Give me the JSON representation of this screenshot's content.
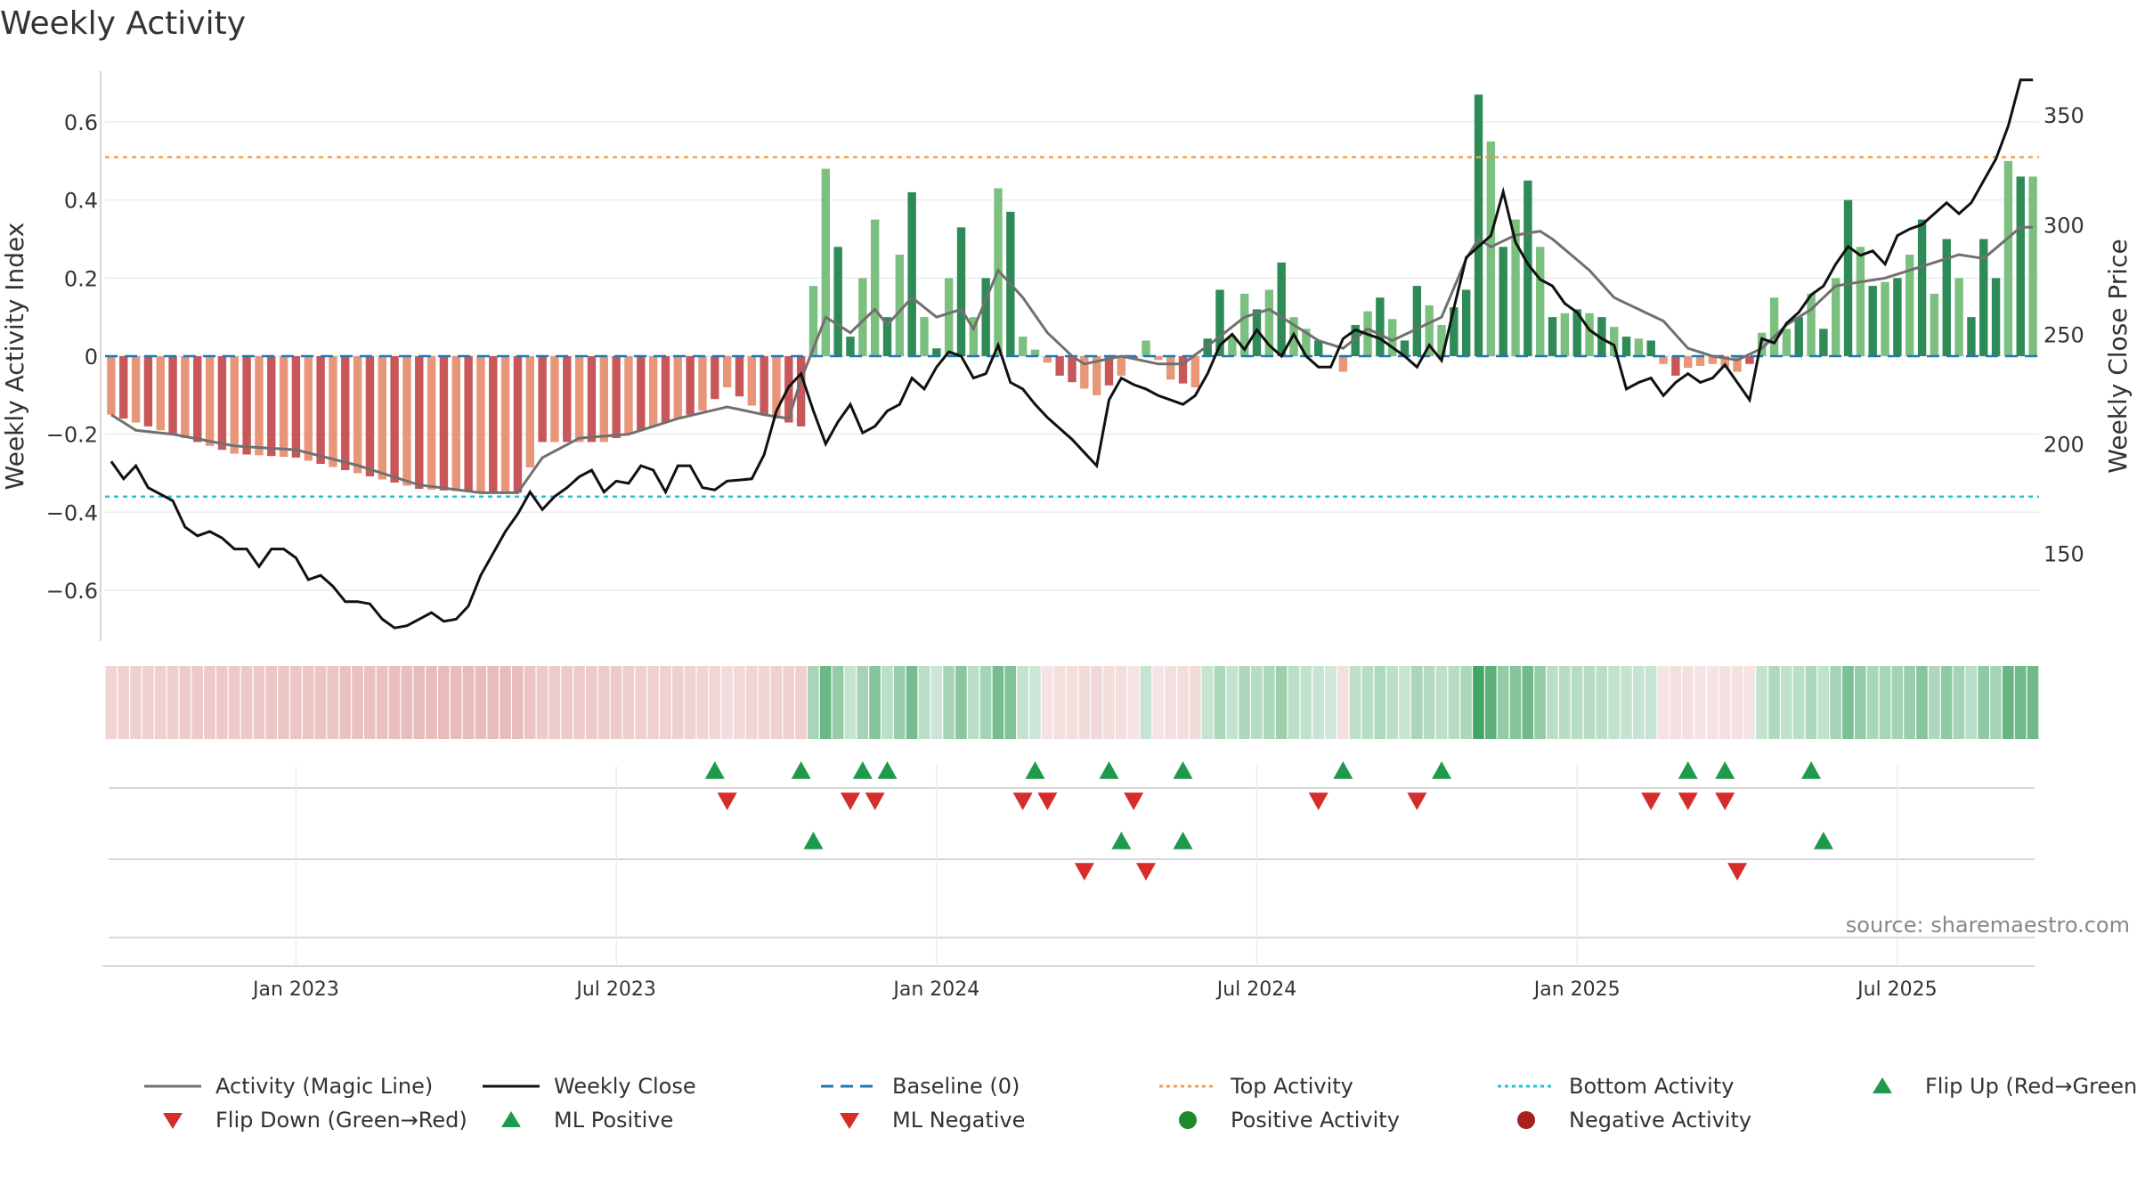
{
  "chart_data": {
    "type": "bar",
    "title": "Weekly Activity",
    "ylabel_left": "Weekly Activity Index",
    "ylabel_right": "Weekly Close Price",
    "left_ticks": [
      0.6,
      0.4,
      0.2,
      0,
      -0.2,
      -0.4,
      -0.6
    ],
    "left_tick_labels": [
      "0.6",
      "0.4",
      "0.2",
      "0",
      "−0.2",
      "−0.4",
      "−0.6"
    ],
    "left_ylim": [
      -0.73,
      0.73
    ],
    "right_ticks": [
      350,
      300,
      250,
      200,
      150
    ],
    "right_tick_labels": [
      "350",
      "300",
      "250",
      "200",
      "150"
    ],
    "right_ylim": [
      110,
      370
    ],
    "x_ticks": [
      {
        "label": "Jan 2023",
        "week": 15
      },
      {
        "label": "Jul 2023",
        "week": 41
      },
      {
        "label": "Jan 2024",
        "week": 67
      },
      {
        "label": "Jul 2024",
        "week": 93
      },
      {
        "label": "Jan 2025",
        "week": 119
      },
      {
        "label": "Jul 2025",
        "week": 145
      }
    ],
    "n_weeks": 157,
    "top_activity": 0.51,
    "bottom_activity": -0.36,
    "baseline": 0,
    "source_text": "source: sharemaestro.com",
    "anchors_activity": [
      [
        0,
        -0.15
      ],
      [
        5,
        -0.2
      ],
      [
        10,
        -0.25
      ],
      [
        15,
        -0.26
      ],
      [
        20,
        -0.3
      ],
      [
        25,
        -0.34
      ],
      [
        30,
        -0.35
      ],
      [
        33,
        -0.35
      ],
      [
        35,
        -0.22
      ],
      [
        40,
        -0.22
      ],
      [
        44,
        -0.18
      ],
      [
        48,
        -0.14
      ],
      [
        50,
        -0.08
      ],
      [
        53,
        -0.15
      ],
      [
        56,
        -0.18
      ],
      [
        57,
        0.18
      ],
      [
        58,
        0.48
      ],
      [
        59,
        0.28
      ],
      [
        60,
        0.05
      ],
      [
        62,
        0.35
      ],
      [
        63,
        0.1
      ],
      [
        65,
        0.42
      ],
      [
        66,
        0.1
      ],
      [
        67,
        0.02
      ],
      [
        68,
        0.2
      ],
      [
        69,
        0.33
      ],
      [
        70,
        0.1
      ],
      [
        71,
        0.2
      ],
      [
        72,
        0.43
      ],
      [
        73,
        0.37
      ],
      [
        74,
        0.05
      ],
      [
        77,
        -0.05
      ],
      [
        80,
        -0.1
      ],
      [
        82,
        -0.05
      ],
      [
        84,
        0.04
      ],
      [
        86,
        -0.06
      ],
      [
        88,
        -0.08
      ],
      [
        90,
        0.17
      ],
      [
        91,
        0.05
      ],
      [
        92,
        0.16
      ],
      [
        93,
        0.12
      ],
      [
        94,
        0.17
      ],
      [
        95,
        0.24
      ],
      [
        96,
        0.1
      ],
      [
        98,
        0.04
      ],
      [
        100,
        -0.04
      ],
      [
        101,
        0.08
      ],
      [
        103,
        0.15
      ],
      [
        105,
        0.04
      ],
      [
        106,
        0.18
      ],
      [
        108,
        0.08
      ],
      [
        110,
        0.17
      ],
      [
        111,
        0.67
      ],
      [
        112,
        0.55
      ],
      [
        113,
        0.28
      ],
      [
        114,
        0.35
      ],
      [
        115,
        0.45
      ],
      [
        116,
        0.28
      ],
      [
        117,
        0.1
      ],
      [
        119,
        0.12
      ],
      [
        121,
        0.1
      ],
      [
        123,
        0.05
      ],
      [
        125,
        0.04
      ],
      [
        126,
        -0.02
      ],
      [
        127,
        -0.05
      ],
      [
        128,
        -0.03
      ],
      [
        130,
        -0.02
      ],
      [
        132,
        -0.04
      ],
      [
        133,
        -0.02
      ],
      [
        134,
        0.06
      ],
      [
        135,
        0.15
      ],
      [
        136,
        0.07
      ],
      [
        137,
        0.1
      ],
      [
        138,
        0.16
      ],
      [
        139,
        0.07
      ],
      [
        140,
        0.2
      ],
      [
        141,
        0.4
      ],
      [
        142,
        0.28
      ],
      [
        143,
        0.18
      ],
      [
        145,
        0.2
      ],
      [
        146,
        0.26
      ],
      [
        147,
        0.35
      ],
      [
        148,
        0.16
      ],
      [
        149,
        0.3
      ],
      [
        150,
        0.2
      ],
      [
        151,
        0.1
      ],
      [
        152,
        0.3
      ],
      [
        153,
        0.2
      ],
      [
        154,
        0.5
      ],
      [
        155,
        0.46
      ]
    ],
    "anchors_magic_line": [
      [
        0,
        -0.15
      ],
      [
        2,
        -0.19
      ],
      [
        5,
        -0.2
      ],
      [
        10,
        -0.23
      ],
      [
        15,
        -0.24
      ],
      [
        20,
        -0.28
      ],
      [
        25,
        -0.33
      ],
      [
        30,
        -0.35
      ],
      [
        33,
        -0.35
      ],
      [
        35,
        -0.26
      ],
      [
        38,
        -0.21
      ],
      [
        42,
        -0.2
      ],
      [
        46,
        -0.16
      ],
      [
        50,
        -0.13
      ],
      [
        53,
        -0.15
      ],
      [
        55,
        -0.16
      ],
      [
        56,
        -0.06
      ],
      [
        58,
        0.1
      ],
      [
        60,
        0.06
      ],
      [
        62,
        0.12
      ],
      [
        63,
        0.08
      ],
      [
        65,
        0.15
      ],
      [
        67,
        0.1
      ],
      [
        69,
        0.12
      ],
      [
        70,
        0.07
      ],
      [
        72,
        0.22
      ],
      [
        74,
        0.15
      ],
      [
        76,
        0.06
      ],
      [
        78,
        0.0
      ],
      [
        79,
        -0.02
      ],
      [
        82,
        0.0
      ],
      [
        85,
        -0.02
      ],
      [
        87,
        -0.02
      ],
      [
        90,
        0.05
      ],
      [
        92,
        0.1
      ],
      [
        94,
        0.12
      ],
      [
        96,
        0.08
      ],
      [
        98,
        0.04
      ],
      [
        100,
        0.02
      ],
      [
        102,
        0.07
      ],
      [
        104,
        0.04
      ],
      [
        106,
        0.07
      ],
      [
        108,
        0.1
      ],
      [
        110,
        0.25
      ],
      [
        111,
        0.3
      ],
      [
        112,
        0.28
      ],
      [
        114,
        0.31
      ],
      [
        116,
        0.32
      ],
      [
        117,
        0.3
      ],
      [
        120,
        0.22
      ],
      [
        122,
        0.15
      ],
      [
        124,
        0.12
      ],
      [
        126,
        0.09
      ],
      [
        128,
        0.02
      ],
      [
        130,
        0.0
      ],
      [
        132,
        -0.01
      ],
      [
        134,
        0.02
      ],
      [
        136,
        0.08
      ],
      [
        138,
        0.12
      ],
      [
        140,
        0.18
      ],
      [
        142,
        0.19
      ],
      [
        144,
        0.2
      ],
      [
        146,
        0.22
      ],
      [
        148,
        0.24
      ],
      [
        150,
        0.26
      ],
      [
        152,
        0.25
      ],
      [
        155,
        0.33
      ]
    ],
    "anchors_close": [
      [
        0,
        192
      ],
      [
        1,
        184
      ],
      [
        2,
        190
      ],
      [
        3,
        180
      ],
      [
        4,
        177
      ],
      [
        5,
        174
      ],
      [
        6,
        162
      ],
      [
        7,
        158
      ],
      [
        8,
        160
      ],
      [
        9,
        157
      ],
      [
        10,
        152
      ],
      [
        11,
        152
      ],
      [
        12,
        144
      ],
      [
        13,
        152
      ],
      [
        14,
        152
      ],
      [
        15,
        148
      ],
      [
        16,
        138
      ],
      [
        17,
        140
      ],
      [
        18,
        135
      ],
      [
        19,
        128
      ],
      [
        20,
        128
      ],
      [
        21,
        127
      ],
      [
        22,
        120
      ],
      [
        23,
        116
      ],
      [
        24,
        117
      ],
      [
        25,
        120
      ],
      [
        26,
        123
      ],
      [
        27,
        119
      ],
      [
        28,
        120
      ],
      [
        29,
        126
      ],
      [
        30,
        140
      ],
      [
        31,
        150
      ],
      [
        32,
        160
      ],
      [
        33,
        168
      ],
      [
        34,
        178
      ],
      [
        35,
        170
      ],
      [
        36,
        176
      ],
      [
        37,
        180
      ],
      [
        38,
        185
      ],
      [
        39,
        188
      ],
      [
        40,
        178
      ],
      [
        41,
        183
      ],
      [
        42,
        182
      ],
      [
        43,
        190
      ],
      [
        44,
        188
      ],
      [
        45,
        178
      ],
      [
        46,
        190
      ],
      [
        47,
        190
      ],
      [
        48,
        180
      ],
      [
        49,
        179
      ],
      [
        50,
        183
      ],
      [
        52,
        184
      ],
      [
        53,
        195
      ],
      [
        54,
        215
      ],
      [
        55,
        226
      ],
      [
        56,
        232
      ],
      [
        57,
        215
      ],
      [
        58,
        200
      ],
      [
        59,
        210
      ],
      [
        60,
        218
      ],
      [
        61,
        205
      ],
      [
        62,
        208
      ],
      [
        63,
        215
      ],
      [
        64,
        218
      ],
      [
        65,
        230
      ],
      [
        66,
        225
      ],
      [
        67,
        235
      ],
      [
        68,
        242
      ],
      [
        69,
        240
      ],
      [
        70,
        230
      ],
      [
        71,
        232
      ],
      [
        72,
        245
      ],
      [
        73,
        228
      ],
      [
        74,
        225
      ],
      [
        75,
        218
      ],
      [
        76,
        212
      ],
      [
        77,
        207
      ],
      [
        78,
        202
      ],
      [
        79,
        196
      ],
      [
        80,
        190
      ],
      [
        81,
        220
      ],
      [
        82,
        230
      ],
      [
        83,
        227
      ],
      [
        84,
        225
      ],
      [
        85,
        222
      ],
      [
        86,
        220
      ],
      [
        87,
        218
      ],
      [
        88,
        222
      ],
      [
        89,
        232
      ],
      [
        90,
        245
      ],
      [
        91,
        250
      ],
      [
        92,
        243
      ],
      [
        93,
        252
      ],
      [
        94,
        245
      ],
      [
        95,
        240
      ],
      [
        96,
        250
      ],
      [
        97,
        240
      ],
      [
        98,
        235
      ],
      [
        99,
        235
      ],
      [
        100,
        248
      ],
      [
        101,
        252
      ],
      [
        102,
        250
      ],
      [
        103,
        248
      ],
      [
        104,
        244
      ],
      [
        105,
        240
      ],
      [
        106,
        235
      ],
      [
        107,
        245
      ],
      [
        108,
        238
      ],
      [
        109,
        262
      ],
      [
        110,
        285
      ],
      [
        111,
        290
      ],
      [
        112,
        295
      ],
      [
        113,
        315
      ],
      [
        114,
        292
      ],
      [
        115,
        282
      ],
      [
        116,
        275
      ],
      [
        117,
        272
      ],
      [
        118,
        264
      ],
      [
        119,
        260
      ],
      [
        120,
        252
      ],
      [
        121,
        248
      ],
      [
        122,
        245
      ],
      [
        123,
        225
      ],
      [
        124,
        228
      ],
      [
        125,
        230
      ],
      [
        126,
        222
      ],
      [
        127,
        228
      ],
      [
        128,
        232
      ],
      [
        129,
        228
      ],
      [
        130,
        230
      ],
      [
        131,
        236
      ],
      [
        132,
        228
      ],
      [
        133,
        220
      ],
      [
        134,
        248
      ],
      [
        135,
        246
      ],
      [
        136,
        255
      ],
      [
        137,
        260
      ],
      [
        138,
        268
      ],
      [
        139,
        272
      ],
      [
        140,
        282
      ],
      [
        141,
        290
      ],
      [
        142,
        286
      ],
      [
        143,
        288
      ],
      [
        144,
        282
      ],
      [
        145,
        295
      ],
      [
        146,
        298
      ],
      [
        147,
        300
      ],
      [
        148,
        305
      ],
      [
        149,
        310
      ],
      [
        150,
        305
      ],
      [
        151,
        310
      ],
      [
        152,
        320
      ],
      [
        153,
        330
      ],
      [
        154,
        345
      ],
      [
        155,
        366
      ]
    ],
    "ml_flags": [
      [
        56,
        1
      ],
      [
        60,
        1
      ],
      [
        63,
        1
      ],
      [
        73,
        1
      ],
      [
        78,
        1
      ],
      [
        83,
        1
      ],
      [
        90,
        1
      ],
      [
        98,
        1
      ],
      [
        106,
        1
      ],
      [
        110,
        1
      ],
      [
        115,
        1
      ],
      [
        117,
        1
      ],
      [
        127,
        1
      ],
      [
        133,
        1
      ],
      [
        141,
        1
      ],
      [
        152,
        1
      ],
      [
        57,
        -1
      ],
      [
        61,
        -1
      ],
      [
        62,
        -1
      ],
      [
        70,
        -1
      ],
      [
        72,
        -1
      ],
      [
        75,
        -1
      ],
      [
        79,
        -1
      ],
      [
        85,
        -1
      ],
      [
        91,
        -1
      ],
      [
        97,
        -1
      ],
      [
        107,
        -1
      ],
      [
        126,
        -1
      ],
      [
        129,
        -1
      ],
      [
        131,
        -1
      ],
      [
        135,
        -1
      ]
    ],
    "flip_up_weeks": [
      49,
      56,
      61,
      63,
      75,
      81,
      87,
      100,
      108,
      128,
      131,
      138
    ],
    "flip_down_weeks": [
      50,
      60,
      62,
      74,
      76,
      83,
      98,
      106,
      125,
      128,
      131
    ],
    "ml_positive_weeks": [
      57,
      82,
      87,
      139
    ],
    "ml_negative_weeks": [
      79,
      84,
      132
    ],
    "colors": {
      "dark_green": "#2e8b57",
      "light_green": "#7cc07f",
      "dark_red": "#c8575a",
      "light_red": "#e8967a",
      "magic_line": "#707070",
      "close_line": "#111111",
      "baseline": "#1f77b4",
      "top_activity": "#f0a050",
      "bottom_activity": "#22c3d6",
      "flip_up": "#1e9a4c",
      "flip_down": "#d62c2c"
    },
    "legend": [
      {
        "label": "Activity (Magic Line)",
        "kind": "line",
        "color": "#707070"
      },
      {
        "label": "Weekly Close",
        "kind": "line",
        "color": "#111111"
      },
      {
        "label": "Baseline (0)",
        "kind": "dash",
        "color": "#1f77b4"
      },
      {
        "label": "Top Activity",
        "kind": "dot",
        "color": "#f0a050"
      },
      {
        "label": "Bottom Activity",
        "kind": "dot",
        "color": "#22c3d6"
      },
      {
        "label": "Flip Up (Red→Green)",
        "kind": "tri-up",
        "color": "#1e9a4c"
      },
      {
        "label": "Flip Down (Green→Red)",
        "kind": "tri-down",
        "color": "#d62c2c"
      },
      {
        "label": "ML Positive",
        "kind": "tri-up",
        "color": "#1e9a4c"
      },
      {
        "label": "ML Negative",
        "kind": "tri-down",
        "color": "#d62c2c"
      },
      {
        "label": "Positive Activity",
        "kind": "circle",
        "color": "#1e8a2e"
      },
      {
        "label": "Negative Activity",
        "kind": "circle",
        "color": "#a82020"
      }
    ]
  }
}
